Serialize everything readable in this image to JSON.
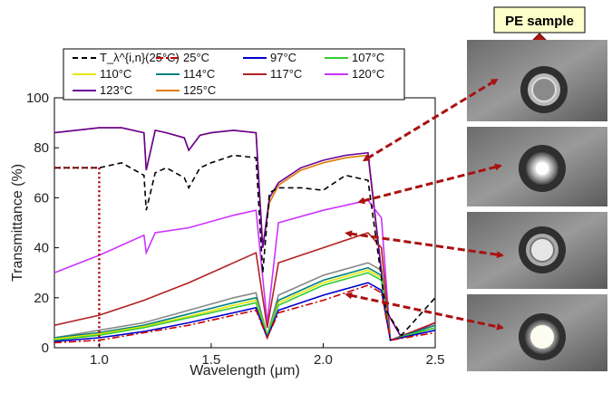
{
  "chart_data": {
    "type": "line",
    "xlabel": "Wavelength (μm)",
    "ylabel": "Transmittance (%)",
    "xlim": [
      0.8,
      2.5
    ],
    "ylim": [
      0,
      100
    ],
    "x_ticks": [
      "1.0",
      "1.5",
      "2.0",
      "2.5"
    ],
    "y_ticks": [
      "0",
      "20",
      "40",
      "60",
      "80",
      "100"
    ],
    "grid": false,
    "legend_position": "top",
    "series": [
      {
        "name": "T_λ^{i,n}(25°C)",
        "color": "#000000",
        "style": "dashed",
        "x": [
          0.8,
          1.0,
          1.1,
          1.2,
          1.21,
          1.25,
          1.3,
          1.38,
          1.4,
          1.45,
          1.5,
          1.6,
          1.7,
          1.73,
          1.76,
          1.8,
          1.9,
          2.0,
          2.1,
          2.2,
          2.28,
          2.35,
          2.5
        ],
        "y": [
          72,
          72,
          74,
          69,
          55,
          70,
          72,
          68,
          64,
          72,
          74,
          77,
          76,
          30,
          62,
          64,
          64,
          63,
          69,
          67,
          15,
          5,
          20
        ]
      },
      {
        "name": "25°C",
        "color": "#cc0000",
        "style": "dashdot",
        "x": [
          0.8,
          1.0,
          1.2,
          1.4,
          1.6,
          1.7,
          1.75,
          1.8,
          2.0,
          2.2,
          2.26,
          2.3,
          2.5
        ],
        "y": [
          2,
          3,
          6,
          9,
          13,
          15,
          4,
          14,
          19,
          25,
          22,
          3,
          6
        ]
      },
      {
        "name": "97°C",
        "color": "#0000cc",
        "style": "solid",
        "x": [
          0.8,
          1.0,
          1.2,
          1.4,
          1.6,
          1.7,
          1.75,
          1.8,
          2.0,
          2.2,
          2.26,
          2.3,
          2.5
        ],
        "y": [
          2.5,
          4,
          6.5,
          10,
          14,
          16,
          4,
          15,
          21,
          26,
          23,
          3,
          7
        ]
      },
      {
        "name": "107°C",
        "color": "#33cc33",
        "style": "solid",
        "x": [
          0.8,
          1.0,
          1.2,
          1.4,
          1.6,
          1.7,
          1.75,
          1.8,
          2.0,
          2.2,
          2.26,
          2.3,
          2.5
        ],
        "y": [
          3,
          5,
          8,
          12,
          16,
          18,
          5,
          17,
          25,
          30,
          27,
          3,
          8
        ]
      },
      {
        "name": "110°C",
        "color": "#e6e600",
        "style": "solid",
        "x": [
          0.8,
          1.0,
          1.2,
          1.4,
          1.6,
          1.7,
          1.75,
          1.8,
          2.0,
          2.2,
          2.26,
          2.3,
          2.5
        ],
        "y": [
          3.5,
          5.5,
          8.5,
          12.5,
          17,
          19,
          5,
          18,
          26,
          31,
          28,
          3,
          8
        ]
      },
      {
        "name": "114°C",
        "color": "#008080",
        "style": "solid",
        "x": [
          0.8,
          1.0,
          1.2,
          1.4,
          1.6,
          1.7,
          1.75,
          1.8,
          2.0,
          2.2,
          2.26,
          2.3,
          2.5
        ],
        "y": [
          4,
          6,
          9,
          13.5,
          18,
          20,
          5,
          19,
          27,
          32,
          29,
          3,
          9
        ]
      },
      {
        "name": "117°C",
        "color": "#b22222",
        "style": "solid",
        "x": [
          0.8,
          1.0,
          1.2,
          1.4,
          1.6,
          1.7,
          1.75,
          1.8,
          2.0,
          2.2,
          2.26,
          2.3,
          2.5
        ],
        "y": [
          9,
          13,
          19,
          26,
          34,
          38,
          8,
          34,
          40,
          46,
          40,
          3,
          10
        ]
      },
      {
        "name": "120°C",
        "color": "#cc33ff",
        "style": "solid",
        "x": [
          0.8,
          1.0,
          1.2,
          1.21,
          1.25,
          1.4,
          1.6,
          1.7,
          1.75,
          1.8,
          2.0,
          2.2,
          2.26,
          2.3,
          2.5
        ],
        "y": [
          30,
          37,
          45,
          38,
          46,
          48,
          53,
          55,
          10,
          50,
          55,
          59,
          52,
          3,
          10
        ]
      },
      {
        "name": "123°C",
        "color": "#660099",
        "style": "solid",
        "x": [
          0.8,
          1.0,
          1.1,
          1.2,
          1.21,
          1.25,
          1.3,
          1.38,
          1.4,
          1.45,
          1.5,
          1.6,
          1.7,
          1.73,
          1.76,
          1.8,
          1.9,
          2.0,
          2.1,
          2.2,
          2.28,
          2.35,
          2.5
        ],
        "y": [
          86,
          88,
          88,
          86,
          71,
          87,
          86,
          84,
          79,
          85,
          86,
          87,
          86,
          40,
          60,
          66,
          72,
          75,
          77,
          78,
          15,
          4,
          10
        ]
      },
      {
        "name": "125°C",
        "color": "#e07b00",
        "style": "solid",
        "x": [
          0.8,
          1.0,
          1.1,
          1.2,
          1.21,
          1.25,
          1.3,
          1.38,
          1.4,
          1.45,
          1.5,
          1.6,
          1.7,
          1.73,
          1.76,
          1.8,
          1.9,
          2.0,
          2.1,
          2.2,
          2.28,
          2.35,
          2.5
        ],
        "y": [
          86,
          88,
          88,
          86,
          71,
          87,
          86,
          84,
          79,
          85,
          86,
          87,
          86,
          40,
          58,
          65,
          71,
          74,
          76,
          77,
          15,
          4,
          10
        ]
      }
    ],
    "extra_series_gray": {
      "color": "#888888",
      "x": [
        0.8,
        1.0,
        1.2,
        1.4,
        1.6,
        1.7,
        1.75,
        1.8,
        2.0,
        2.2,
        2.26,
        2.3,
        2.5
      ],
      "y": [
        4,
        7,
        10,
        15,
        20,
        22,
        5,
        21,
        29,
        34,
        31,
        3,
        9
      ]
    },
    "reference_marker": {
      "x": 1.0,
      "y": 72,
      "color": "#aa0000",
      "style": "dotted"
    }
  },
  "photo_panel": {
    "label": "PE sample",
    "arrow_color": "#aa1111"
  }
}
